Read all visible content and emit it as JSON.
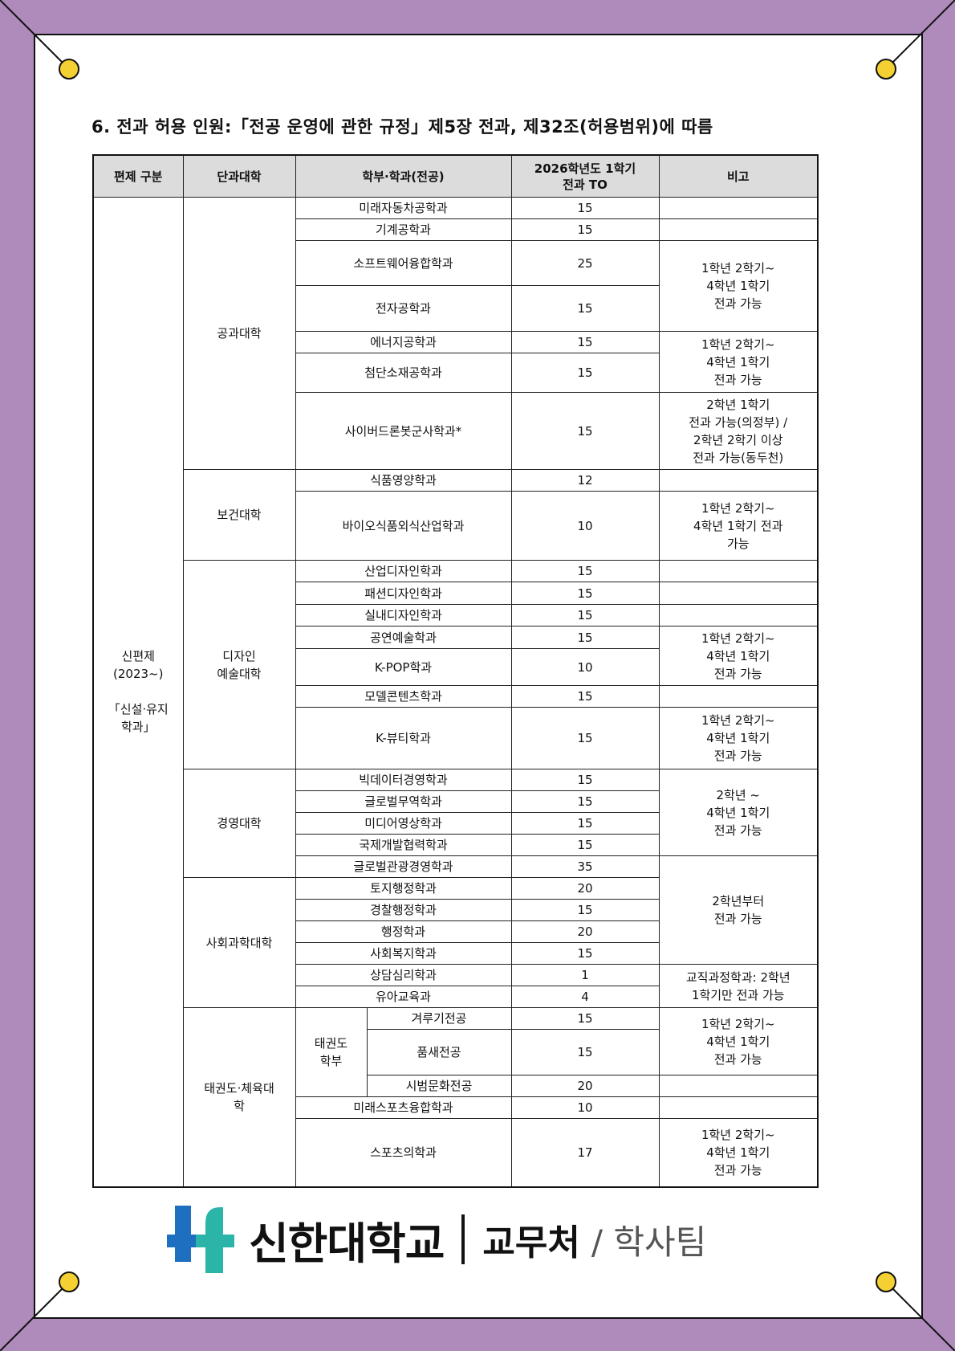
{
  "title": "6. 전과 허용 인원:「전공 운영에 관한 규정」제5장 전과, 제32조(허용범위)에 따름",
  "colors": {
    "frame": "#ae8bbb",
    "pin": "#f5d033",
    "header_bg": "#dcdcdc",
    "logo_blue": "#1f6fc0",
    "logo_teal": "#2bb5a8"
  },
  "table": {
    "headers": [
      "편제 구분",
      "단과대학",
      "학부·학과(전공)",
      "2026학년도 1학기\n전과 TO",
      "비고"
    ],
    "category": "신편제\n(2023~)\n\n「신설·유지\n학과」",
    "colleges": [
      {
        "name": "공과대학",
        "start": 0,
        "span": 7
      },
      {
        "name": "보건대학",
        "start": 7,
        "span": 2
      },
      {
        "name": "디자인\n예술대학",
        "start": 9,
        "span": 7
      },
      {
        "name": "경영대학",
        "start": 16,
        "span": 5
      },
      {
        "name": "사회과학대학",
        "start": 21,
        "span": 6
      },
      {
        "name": "태권도·체육대\n학",
        "start": 27,
        "span": 5
      }
    ],
    "division": {
      "name": "태권도\n학부",
      "start": 27,
      "span": 3
    },
    "rows": [
      {
        "dept": "미래자동차공학과",
        "to": "15"
      },
      {
        "dept": "기계공학과",
        "to": "15"
      },
      {
        "dept": "소프트웨어융합학과",
        "to": "25"
      },
      {
        "dept": "전자공학과",
        "to": "15"
      },
      {
        "dept": "에너지공학과",
        "to": "15"
      },
      {
        "dept": "첨단소재공학과",
        "to": "15"
      },
      {
        "dept": "사이버드론봇군사학과*",
        "to": "15"
      },
      {
        "dept": "식품영양학과",
        "to": "12"
      },
      {
        "dept": "바이오식품외식산업학과",
        "to": "10"
      },
      {
        "dept": "산업디자인학과",
        "to": "15"
      },
      {
        "dept": "패션디자인학과",
        "to": "15"
      },
      {
        "dept": "실내디자인학과",
        "to": "15"
      },
      {
        "dept": "공연예술학과",
        "to": "15"
      },
      {
        "dept": "K-POP학과",
        "to": "10"
      },
      {
        "dept": "모델콘텐츠학과",
        "to": "15"
      },
      {
        "dept": "K-뷰티학과",
        "to": "15"
      },
      {
        "dept": "빅데이터경영학과",
        "to": "15"
      },
      {
        "dept": "글로벌무역학과",
        "to": "15"
      },
      {
        "dept": "미디어영상학과",
        "to": "15"
      },
      {
        "dept": "국제개발협력학과",
        "to": "15"
      },
      {
        "dept": "글로벌관광경영학과",
        "to": "35"
      },
      {
        "dept": "토지행정학과",
        "to": "20"
      },
      {
        "dept": "경찰행정학과",
        "to": "15"
      },
      {
        "dept": "행정학과",
        "to": "20"
      },
      {
        "dept": "사회복지학과",
        "to": "15"
      },
      {
        "dept": "상담심리학과",
        "to": "1"
      },
      {
        "dept": "유아교육과",
        "to": "4"
      },
      {
        "dept": "겨루기전공",
        "to": "15"
      },
      {
        "dept": "품새전공",
        "to": "15"
      },
      {
        "dept": "시범문화전공",
        "to": "20"
      },
      {
        "dept": "미래스포츠융합학과",
        "to": "10"
      },
      {
        "dept": "스포츠의학과",
        "to": "17"
      }
    ],
    "remarks": [
      {
        "start": 0,
        "span": 1,
        "text": ""
      },
      {
        "start": 1,
        "span": 1,
        "text": ""
      },
      {
        "start": 2,
        "span": 2,
        "text": "1학년 2학기~\n4학년 1학기\n전과 가능"
      },
      {
        "start": 4,
        "span": 2,
        "text": "1학년 2학기~\n4학년 1학기\n전과 가능"
      },
      {
        "start": 6,
        "span": 1,
        "text": "2학년 1학기\n전과 가능(의정부) /\n2학년 2학기 이상\n전과 가능(동두천)"
      },
      {
        "start": 7,
        "span": 1,
        "text": ""
      },
      {
        "start": 8,
        "span": 1,
        "text": "1학년 2학기~\n4학년 1학기 전과\n가능"
      },
      {
        "start": 9,
        "span": 1,
        "text": ""
      },
      {
        "start": 10,
        "span": 1,
        "text": ""
      },
      {
        "start": 11,
        "span": 1,
        "text": ""
      },
      {
        "start": 12,
        "span": 2,
        "text": "1학년 2학기~\n4학년 1학기\n전과 가능"
      },
      {
        "start": 14,
        "span": 1,
        "text": ""
      },
      {
        "start": 15,
        "span": 1,
        "text": "1학년 2학기~\n4학년 1학기\n전과 가능"
      },
      {
        "start": 16,
        "span": 4,
        "text": "2학년 ~\n4학년 1학기\n전과 가능"
      },
      {
        "start": 20,
        "span": 5,
        "text": "2학년부터\n전과 가능"
      },
      {
        "start": 25,
        "span": 2,
        "text": "교직과정학과: 2학년\n1학기만 전과 가능"
      },
      {
        "start": 27,
        "span": 2,
        "text": "1학년 2학기~\n4학년 1학기\n전과 가능"
      },
      {
        "start": 29,
        "span": 1,
        "text": ""
      },
      {
        "start": 30,
        "span": 1,
        "text": ""
      },
      {
        "start": 31,
        "span": 1,
        "text": "1학년 2학기~\n4학년 1학기\n전과 가능"
      }
    ]
  },
  "logo": {
    "university": "신한대학교",
    "department": "교무처",
    "team": "/ 학사팀"
  }
}
